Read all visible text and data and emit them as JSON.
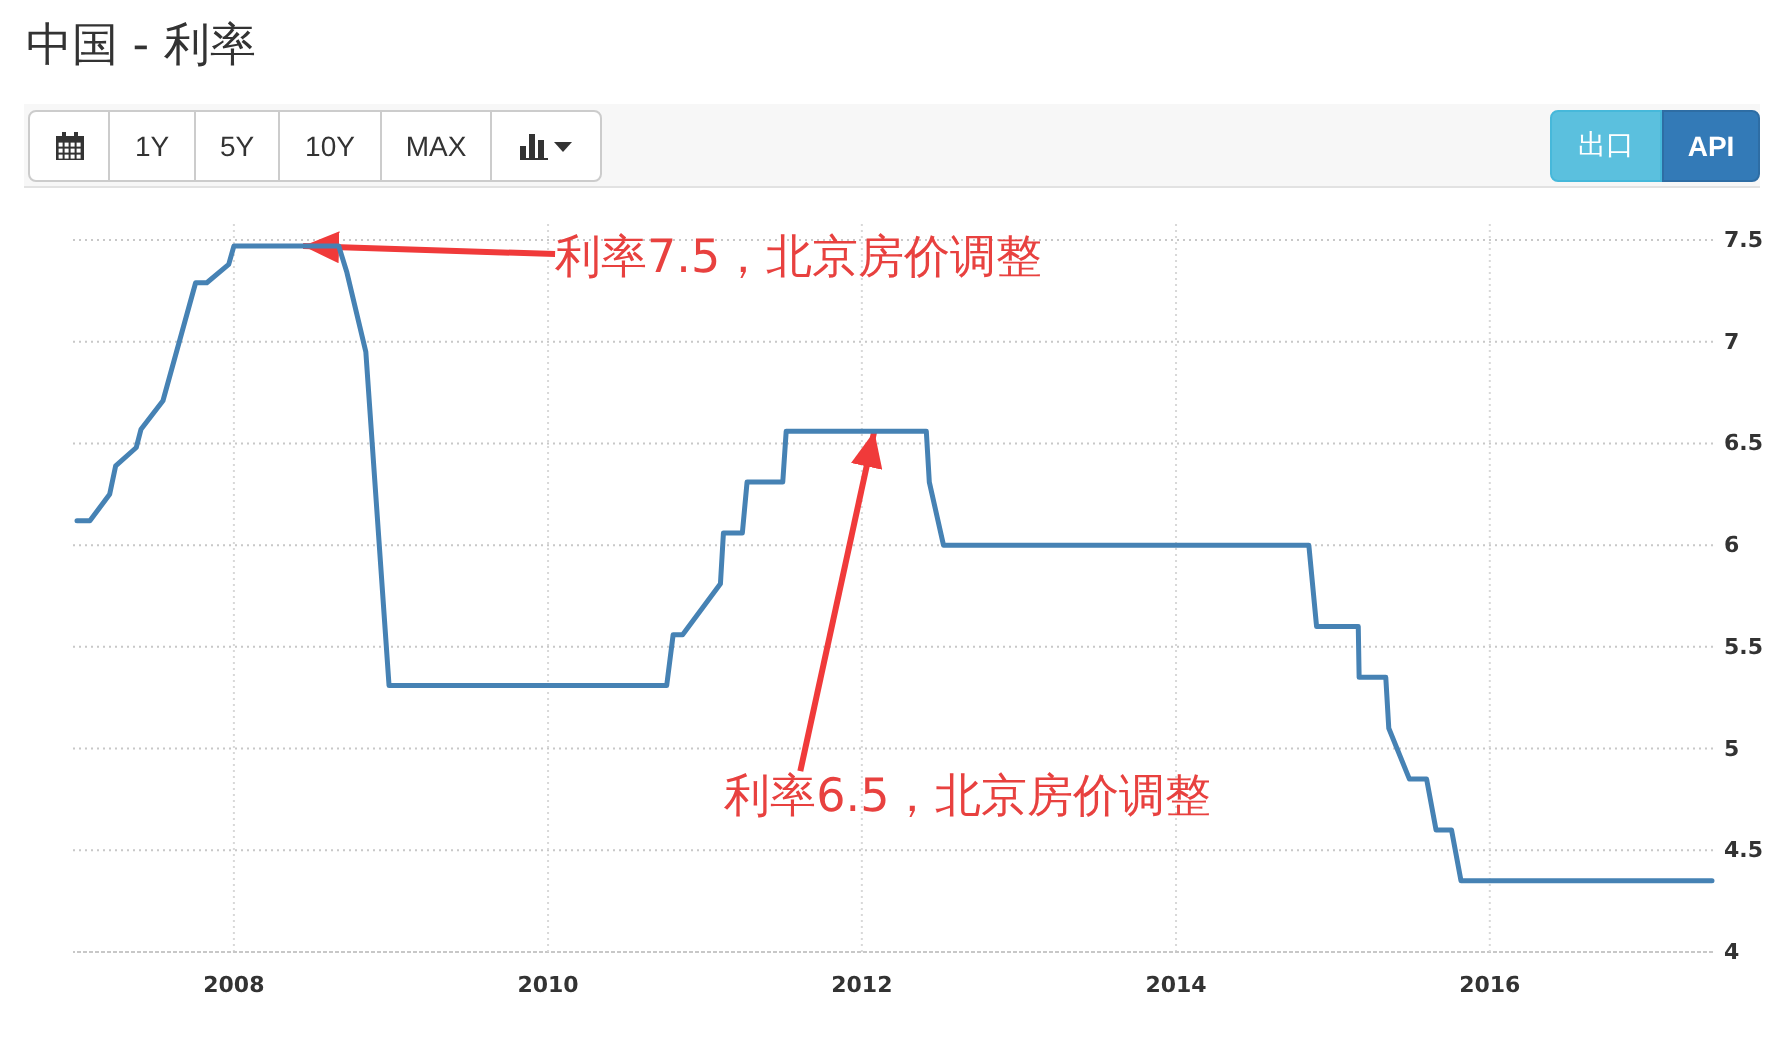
{
  "chart_data": {
    "type": "line",
    "title": "中国 - 利率",
    "x": [
      "2007-01-01",
      "2007-01-31",
      "2007-03-18",
      "2007-04-01",
      "2007-05-19",
      "2007-05-30",
      "2007-07-20",
      "2007-10-04",
      "2007-10-30",
      "2007-12-20",
      "2008-01-01",
      "2008-09-01",
      "2008-09-20",
      "2008-11-03",
      "2008-12-27",
      "2010-10-04",
      "2010-10-19",
      "2010-11-10",
      "2011-02-06",
      "2011-02-13",
      "2011-03-29",
      "2011-04-09",
      "2011-07-01",
      "2011-07-09",
      "2012-05-30",
      "2012-06-06",
      "2012-07-09",
      "2014-11-06",
      "2014-11-24",
      "2015-03-01",
      "2015-03-03",
      "2015-05-04",
      "2015-05-11",
      "2015-06-28",
      "2015-08-07",
      "2015-08-29",
      "2015-10-04",
      "2015-10-26",
      "2017-06-01"
    ],
    "values": [
      6.12,
      6.12,
      6.25,
      6.39,
      6.48,
      6.57,
      6.71,
      7.29,
      7.29,
      7.38,
      7.47,
      7.47,
      7.34,
      6.95,
      5.31,
      5.31,
      5.56,
      5.56,
      5.81,
      6.06,
      6.06,
      6.31,
      6.31,
      6.56,
      6.56,
      6.31,
      6.0,
      6.0,
      5.6,
      5.6,
      5.35,
      5.35,
      5.1,
      4.85,
      4.85,
      4.6,
      4.6,
      4.35,
      4.35
    ],
    "color": "#4682b4",
    "xlim": [
      "2007-01-01",
      "2017-06-01"
    ],
    "xticks": [
      "2008",
      "2010",
      "2012",
      "2014",
      "2016"
    ],
    "ylim": [
      4,
      7.5
    ],
    "yticks": [
      4,
      4.5,
      5,
      5.5,
      6,
      6.5,
      7,
      7.5
    ],
    "grid": true,
    "annotations": [
      "1Y",
      "5Y",
      "10Y",
      "MAX",
      "出口",
      "API",
      {
        "text": "利率7.5，北京房价调整",
        "x": "2008-06-10",
        "y": 7.47
      },
      {
        "text": "利率6.5，北京房价调整",
        "x": "2012-01-30",
        "y": 6.56
      }
    ]
  }
}
